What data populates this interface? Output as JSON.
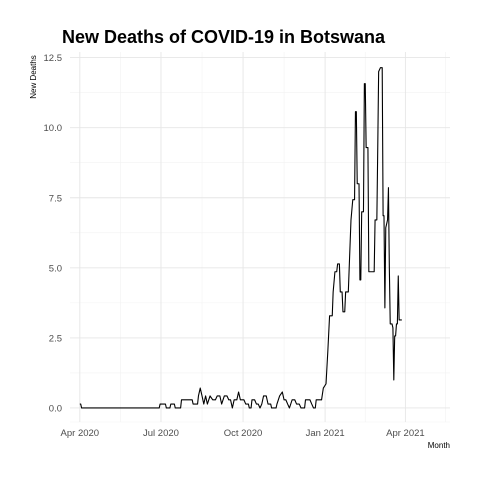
{
  "chart_data": {
    "type": "line",
    "title": "New Deaths of COVID-19 in Botswana",
    "xlabel": "Month",
    "ylabel": "New Deaths",
    "x_ticks": [
      {
        "date": "2020-04-01",
        "label": "Apr 2020"
      },
      {
        "date": "2020-07-01",
        "label": "Jul 2020"
      },
      {
        "date": "2020-10-01",
        "label": "Oct 2020"
      },
      {
        "date": "2021-01-01",
        "label": "Jan 2021"
      },
      {
        "date": "2021-04-01",
        "label": "Apr 2021"
      }
    ],
    "y_ticks": [
      "0.0",
      "2.5",
      "5.0",
      "7.5",
      "10.0",
      "12.5"
    ],
    "ylim": [
      -0.5,
      12.7
    ],
    "xlim": [
      "2020-03-21",
      "2021-05-21"
    ],
    "grid": true,
    "series": [
      {
        "color": "#000000",
        "points": [
          [
            "2020-04-01",
            0.14
          ],
          [
            "2020-04-02",
            0.14
          ],
          [
            "2020-04-03",
            0.0
          ],
          [
            "2020-06-29",
            0.0
          ],
          [
            "2020-06-30",
            0.14
          ],
          [
            "2020-07-06",
            0.14
          ],
          [
            "2020-07-07",
            0.0
          ],
          [
            "2020-07-11",
            0.0
          ],
          [
            "2020-07-12",
            0.14
          ],
          [
            "2020-07-16",
            0.14
          ],
          [
            "2020-07-17",
            0.0
          ],
          [
            "2020-07-23",
            0.0
          ],
          [
            "2020-07-24",
            0.29
          ],
          [
            "2020-08-05",
            0.29
          ],
          [
            "2020-08-06",
            0.14
          ],
          [
            "2020-08-11",
            0.14
          ],
          [
            "2020-08-12",
            0.43
          ],
          [
            "2020-08-14",
            0.71
          ],
          [
            "2020-08-16",
            0.43
          ],
          [
            "2020-08-18",
            0.14
          ],
          [
            "2020-08-20",
            0.43
          ],
          [
            "2020-08-22",
            0.14
          ],
          [
            "2020-08-25",
            0.43
          ],
          [
            "2020-08-28",
            0.29
          ],
          [
            "2020-08-31",
            0.29
          ],
          [
            "2020-09-02",
            0.43
          ],
          [
            "2020-09-05",
            0.43
          ],
          [
            "2020-09-07",
            0.14
          ],
          [
            "2020-09-10",
            0.43
          ],
          [
            "2020-09-13",
            0.43
          ],
          [
            "2020-09-15",
            0.29
          ],
          [
            "2020-09-17",
            0.29
          ],
          [
            "2020-09-19",
            0.0
          ],
          [
            "2020-09-21",
            0.29
          ],
          [
            "2020-09-24",
            0.29
          ],
          [
            "2020-09-26",
            0.57
          ],
          [
            "2020-09-28",
            0.29
          ],
          [
            "2020-10-02",
            0.29
          ],
          [
            "2020-10-04",
            0.14
          ],
          [
            "2020-10-07",
            0.14
          ],
          [
            "2020-10-08",
            0.0
          ],
          [
            "2020-10-10",
            0.0
          ],
          [
            "2020-10-11",
            0.29
          ],
          [
            "2020-10-14",
            0.29
          ],
          [
            "2020-10-16",
            0.14
          ],
          [
            "2020-10-18",
            0.14
          ],
          [
            "2020-10-20",
            0.0
          ],
          [
            "2020-10-22",
            0.14
          ],
          [
            "2020-10-24",
            0.43
          ],
          [
            "2020-10-27",
            0.43
          ],
          [
            "2020-10-29",
            0.14
          ],
          [
            "2020-11-01",
            0.14
          ],
          [
            "2020-11-02",
            0.0
          ],
          [
            "2020-11-07",
            0.0
          ],
          [
            "2020-11-08",
            0.14
          ],
          [
            "2020-11-11",
            0.43
          ],
          [
            "2020-11-14",
            0.57
          ],
          [
            "2020-11-16",
            0.29
          ],
          [
            "2020-11-18",
            0.29
          ],
          [
            "2020-11-20",
            0.14
          ],
          [
            "2020-11-22",
            0.0
          ],
          [
            "2020-11-25",
            0.29
          ],
          [
            "2020-11-28",
            0.29
          ],
          [
            "2020-11-30",
            0.14
          ],
          [
            "2020-12-03",
            0.14
          ],
          [
            "2020-12-05",
            0.0
          ],
          [
            "2020-12-09",
            0.0
          ],
          [
            "2020-12-10",
            0.29
          ],
          [
            "2020-12-15",
            0.29
          ],
          [
            "2020-12-17",
            0.14
          ],
          [
            "2020-12-19",
            0.0
          ],
          [
            "2020-12-21",
            0.0
          ],
          [
            "2020-12-22",
            0.29
          ],
          [
            "2020-12-28",
            0.29
          ],
          [
            "2020-12-30",
            0.71
          ],
          [
            "2021-01-02",
            0.86
          ],
          [
            "2021-01-03",
            1.43
          ],
          [
            "2021-01-04",
            2.0
          ],
          [
            "2021-01-06",
            3.29
          ],
          [
            "2021-01-09",
            3.29
          ],
          [
            "2021-01-10",
            4.14
          ],
          [
            "2021-01-12",
            4.86
          ],
          [
            "2021-01-14",
            4.86
          ],
          [
            "2021-01-15",
            5.14
          ],
          [
            "2021-01-17",
            5.14
          ],
          [
            "2021-01-18",
            4.14
          ],
          [
            "2021-01-20",
            4.14
          ],
          [
            "2021-01-21",
            3.43
          ],
          [
            "2021-01-23",
            3.43
          ],
          [
            "2021-01-24",
            4.14
          ],
          [
            "2021-01-27",
            4.14
          ],
          [
            "2021-01-28",
            5.0
          ],
          [
            "2021-01-30",
            6.71
          ],
          [
            "2021-02-01",
            7.43
          ],
          [
            "2021-02-03",
            7.43
          ],
          [
            "2021-02-04",
            10.57
          ],
          [
            "2021-02-05",
            10.57
          ],
          [
            "2021-02-06",
            8.0
          ],
          [
            "2021-02-08",
            8.0
          ],
          [
            "2021-02-09",
            4.57
          ],
          [
            "2021-02-10",
            4.57
          ],
          [
            "2021-02-11",
            7.0
          ],
          [
            "2021-02-13",
            7.0
          ],
          [
            "2021-02-14",
            11.57
          ],
          [
            "2021-02-15",
            11.57
          ],
          [
            "2021-02-16",
            9.29
          ],
          [
            "2021-02-18",
            9.29
          ],
          [
            "2021-02-19",
            4.86
          ],
          [
            "2021-02-22",
            4.86
          ],
          [
            "2021-02-25",
            4.86
          ],
          [
            "2021-02-26",
            6.71
          ],
          [
            "2021-02-28",
            6.71
          ],
          [
            "2021-03-01",
            9.29
          ],
          [
            "2021-03-02",
            12.0
          ],
          [
            "2021-03-04",
            12.14
          ],
          [
            "2021-03-06",
            12.14
          ],
          [
            "2021-03-07",
            6.86
          ],
          [
            "2021-03-08",
            6.86
          ],
          [
            "2021-03-09",
            3.57
          ],
          [
            "2021-03-10",
            6.43
          ],
          [
            "2021-03-12",
            6.71
          ],
          [
            "2021-03-13",
            7.86
          ],
          [
            "2021-03-14",
            5.0
          ],
          [
            "2021-03-15",
            3.0
          ],
          [
            "2021-03-17",
            3.0
          ],
          [
            "2021-03-18",
            2.86
          ],
          [
            "2021-03-19",
            1.0
          ],
          [
            "2021-03-20",
            2.57
          ],
          [
            "2021-03-21",
            2.57
          ],
          [
            "2021-03-22",
            3.0
          ],
          [
            "2021-03-23",
            3.0
          ],
          [
            "2021-03-24",
            4.71
          ],
          [
            "2021-03-25",
            3.14
          ],
          [
            "2021-03-28",
            3.14
          ]
        ]
      }
    ]
  }
}
